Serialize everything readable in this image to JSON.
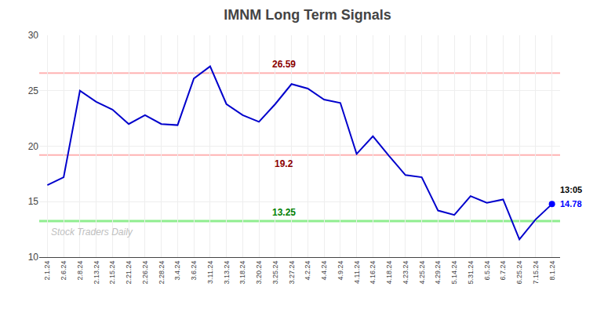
{
  "chart_data": {
    "type": "line",
    "title": "IMNM Long Term Signals",
    "categories": [
      "2.1.24",
      "2.6.24",
      "2.8.24",
      "2.13.24",
      "2.15.24",
      "2.21.24",
      "2.26.24",
      "2.28.24",
      "3.4.24",
      "3.6.24",
      "3.11.24",
      "3.13.24",
      "3.18.24",
      "3.20.24",
      "3.25.24",
      "3.27.24",
      "4.2.24",
      "4.4.24",
      "4.9.24",
      "4.11.24",
      "4.16.24",
      "4.18.24",
      "4.23.24",
      "4.25.24",
      "4.29.24",
      "5.14.24",
      "5.31.24",
      "6.5.24",
      "6.7.24",
      "6.25.24",
      "7.15.24",
      "8.1.24"
    ],
    "values": [
      16.5,
      17.2,
      25.0,
      24.0,
      23.3,
      22.0,
      22.8,
      22.0,
      21.9,
      26.1,
      27.2,
      23.8,
      22.8,
      22.2,
      23.8,
      25.6,
      25.2,
      24.2,
      23.9,
      19.3,
      20.9,
      19.1,
      17.4,
      17.2,
      14.2,
      13.8,
      15.5,
      14.9,
      15.2,
      11.6,
      13.4,
      14.78
    ],
    "color": "#0000cc",
    "ylim": [
      10,
      30
    ],
    "yticks": [
      10,
      15,
      20,
      25,
      30
    ],
    "grid": true,
    "reference_lines": [
      {
        "value": 26.59,
        "color": "#ffb3b3",
        "label_color": "#8b0000"
      },
      {
        "value": 19.2,
        "color": "#ffb3b3",
        "label_color": "#8b0000"
      },
      {
        "value": 13.25,
        "color": "#90ee90",
        "label_color": "#008000"
      }
    ],
    "last_point": {
      "label": "13:05",
      "color": "#0000ff"
    },
    "watermark": "Stock Traders Daily"
  }
}
